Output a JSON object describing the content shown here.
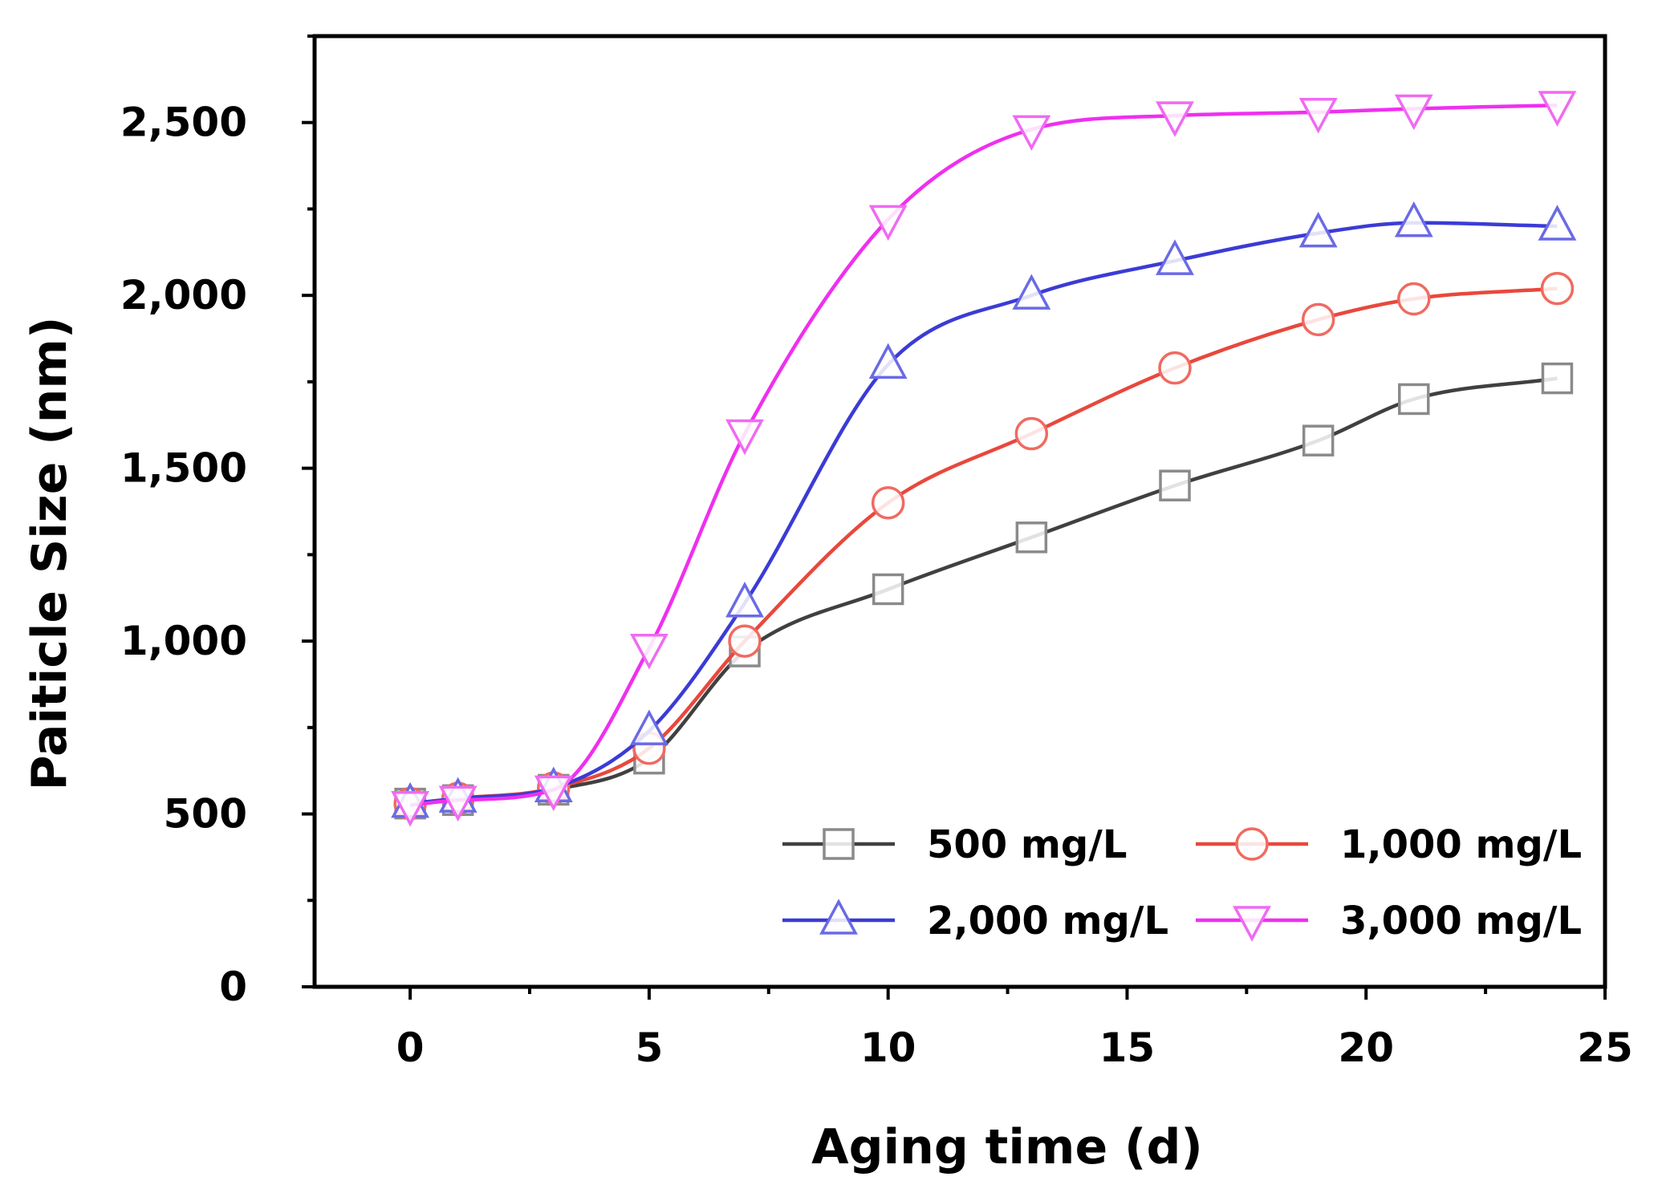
{
  "chart_data": {
    "type": "line",
    "title": "",
    "xlabel": "Aging time (d)",
    "ylabel": "Paiticle Size (nm)",
    "xlim": [
      -2,
      25
    ],
    "ylim": [
      0,
      2750
    ],
    "x_ticks": [
      0,
      5,
      10,
      15,
      20,
      25
    ],
    "x_tick_labels": [
      "0",
      "5",
      "10",
      "15",
      "20",
      "25"
    ],
    "y_ticks": [
      0,
      500,
      1000,
      1500,
      2000,
      2500
    ],
    "y_tick_labels": [
      "0",
      "500",
      "1,000",
      "1,500",
      "2,000",
      "2,500"
    ],
    "grid": false,
    "legend_position": "bottom-right",
    "x": [
      0,
      1,
      3,
      5,
      7,
      10,
      13,
      16,
      19,
      21,
      24
    ],
    "series": [
      {
        "name": "500 mg/L",
        "marker": "square",
        "color": "#404040",
        "marker_color": "#8a8a8a",
        "values": [
          530,
          540,
          570,
          660,
          970,
          1150,
          1300,
          1450,
          1580,
          1700,
          1760
        ]
      },
      {
        "name": "1,000 mg/L",
        "marker": "circle",
        "color": "#e8483c",
        "marker_color": "#f06a60",
        "values": [
          530,
          545,
          575,
          690,
          1000,
          1400,
          1600,
          1790,
          1930,
          1990,
          2020
        ]
      },
      {
        "name": "2,000 mg/L",
        "marker": "triangle-up",
        "color": "#3b3bd6",
        "marker_color": "#6a6ae6",
        "values": [
          530,
          545,
          575,
          740,
          1110,
          1800,
          2000,
          2100,
          2180,
          2210,
          2200
        ]
      },
      {
        "name": "3,000 mg/L",
        "marker": "triangle-down",
        "color": "#ef2ff0",
        "marker_color": "#f06af2",
        "values": [
          525,
          540,
          570,
          980,
          1600,
          2220,
          2480,
          2520,
          2530,
          2540,
          2550
        ]
      }
    ]
  }
}
